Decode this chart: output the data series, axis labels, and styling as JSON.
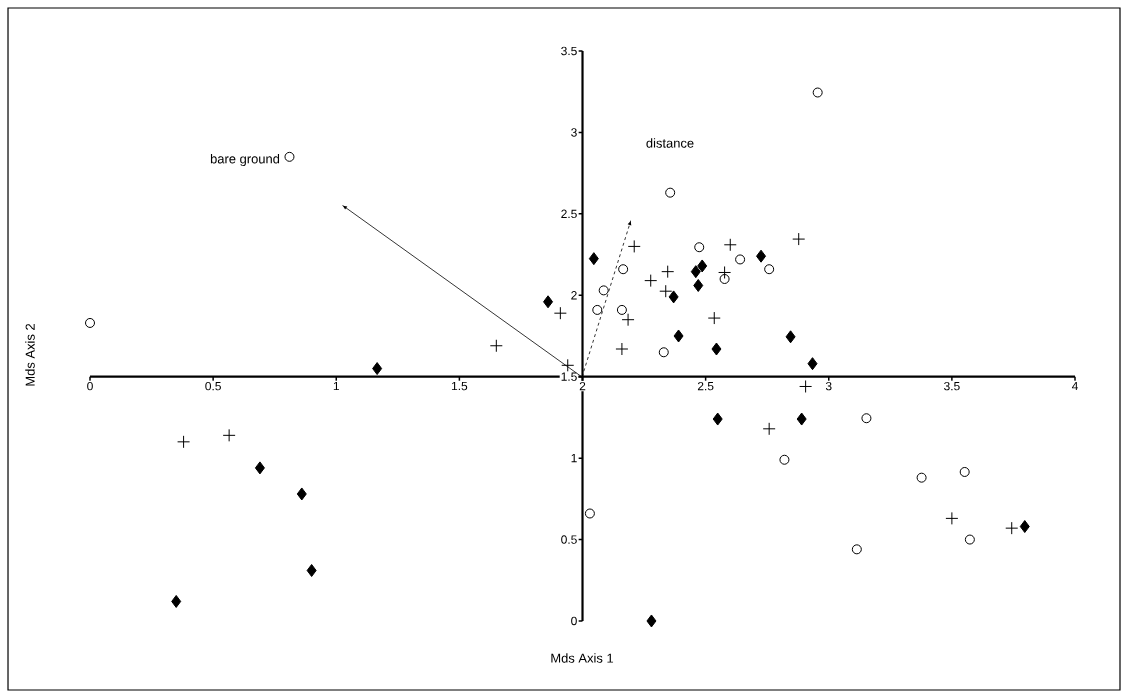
{
  "chart_data": {
    "type": "scatter",
    "xlim": [
      0,
      4
    ],
    "ylim": [
      0,
      3.5
    ],
    "xticks": [
      0,
      0.5,
      1,
      1.5,
      2,
      2.5,
      3,
      3.5,
      4
    ],
    "yticks": [
      0,
      0.5,
      1,
      1.5,
      2,
      2.5,
      3,
      3.5
    ],
    "grid": false,
    "annotations": [
      "bare ground",
      "distance",
      "Mds Axis 1",
      "Mds Axis 2"
    ],
    "series": [
      {
        "color": "#000000",
        "marker": "circle",
        "x": [
          0,
          0.81,
          2.03,
          2.955,
          2.356,
          2.165,
          2.086,
          2.06,
          2.16,
          2.33,
          2.474,
          2.64,
          2.577,
          2.758,
          3.153,
          2.82,
          3.377,
          3.552,
          3.573,
          3.114
        ],
        "values": [
          1.83,
          2.85,
          0.66,
          3.245,
          2.63,
          2.16,
          2.03,
          1.91,
          1.91,
          1.65,
          2.295,
          2.22,
          2.1,
          2.16,
          1.245,
          0.99,
          0.88,
          0.915,
          0.5,
          0.44
        ]
      },
      {
        "color": "#000000",
        "marker": "cross",
        "x": [
          1.65,
          1.94,
          1.91,
          0.38,
          0.565,
          2.21,
          2.185,
          2.16,
          2.277,
          2.346,
          2.338,
          2.535,
          2.6,
          2.577,
          2.878,
          2.906,
          2.758,
          3.5,
          3.743
        ],
        "values": [
          1.69,
          1.57,
          1.89,
          1.1,
          1.14,
          2.3,
          1.85,
          1.67,
          2.09,
          2.145,
          2.025,
          1.86,
          2.31,
          2.14,
          2.345,
          1.44,
          1.18,
          0.63,
          0.57
        ]
      },
      {
        "color": "#000000",
        "marker": "diamond",
        "x": [
          1.166,
          1.86,
          0.69,
          0.86,
          0.9,
          0.35,
          2.046,
          2.37,
          2.39,
          2.46,
          2.486,
          2.47,
          2.544,
          2.725,
          2.845,
          2.934,
          2.549,
          2.89,
          3.796,
          2.28
        ],
        "values": [
          1.55,
          1.96,
          0.94,
          0.78,
          0.31,
          0.12,
          2.225,
          1.99,
          1.75,
          2.145,
          2.18,
          2.06,
          1.67,
          2.24,
          1.745,
          1.58,
          1.24,
          1.24,
          0.58,
          0.0
        ]
      }
    ]
  }
}
